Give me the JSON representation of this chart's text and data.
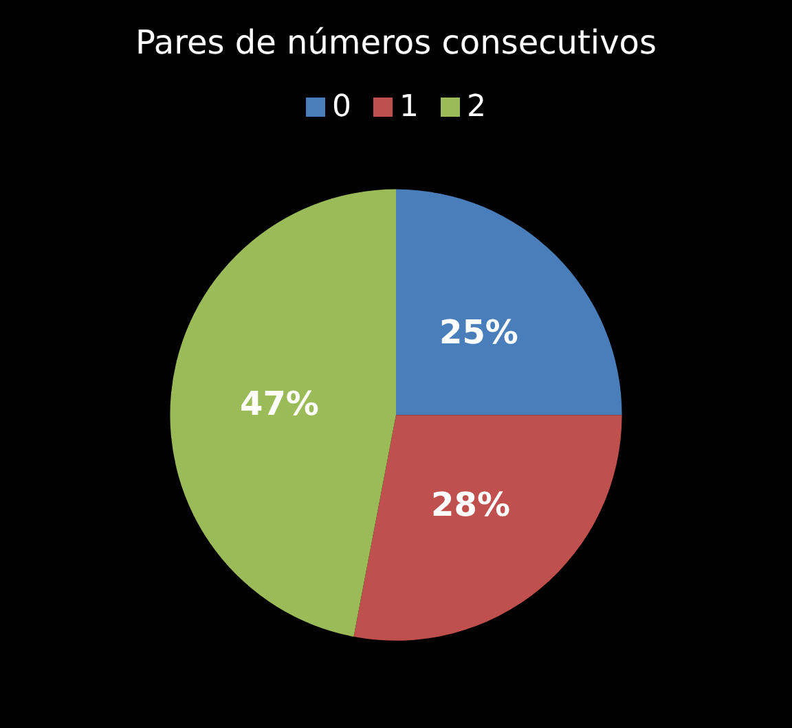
{
  "chart_data": {
    "type": "pie",
    "title": "Pares de números consecutivos",
    "categories": [
      "0",
      "1",
      "2"
    ],
    "values": [
      25,
      28,
      47
    ],
    "colors": [
      "#4a7ebb",
      "#c0504d",
      "#9bbb59"
    ],
    "value_labels": [
      "25%",
      "28%",
      "47%"
    ],
    "legend": "top"
  }
}
